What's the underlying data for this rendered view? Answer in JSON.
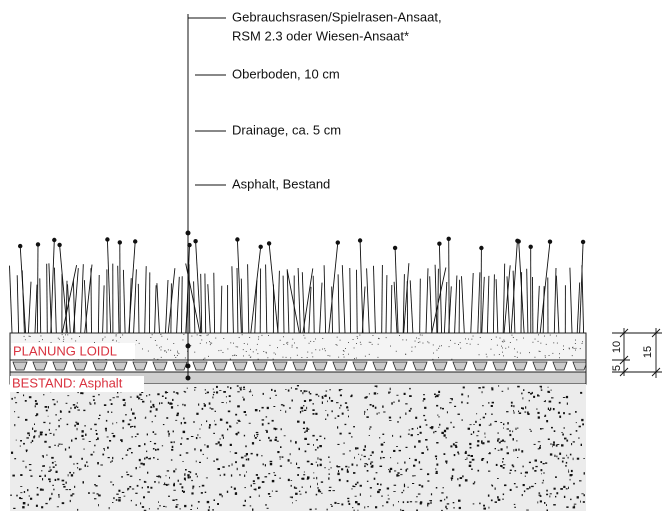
{
  "callouts": [
    {
      "lines": [
        "Gebrauchsrasen/Spielrasen-Ansaat,",
        "RSM 2.3 oder Wiesen-Ansaat*"
      ]
    },
    {
      "lines": [
        "Oberboden, 10 cm"
      ]
    },
    {
      "lines": [
        "Drainage, ca. 5 cm"
      ]
    },
    {
      "lines": [
        "Asphalt, Bestand"
      ]
    }
  ],
  "layer_tags": [
    "PLANUNG LOIDL",
    "BESTAND: Asphalt"
  ],
  "dimensions": [
    "5",
    "10",
    "15"
  ]
}
